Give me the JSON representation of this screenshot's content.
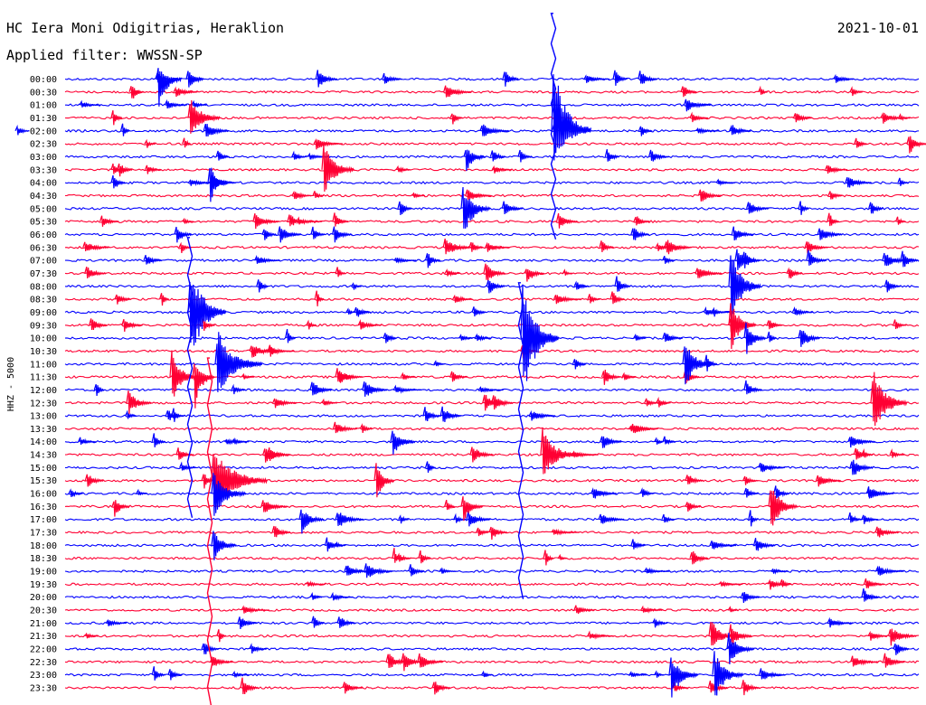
{
  "header": {
    "station": "HC Iera Moni Odigitrias, Heraklion",
    "filter": "Applied filter: WWSSN-SP",
    "date": "2021-10-01"
  },
  "chart_data": {
    "type": "line",
    "title": "HC Iera Moni Odigitrias, Heraklion",
    "subtitle": "Applied filter: WWSSN-SP",
    "date": "2021-10-01",
    "ylabel": "HHZ - 5000",
    "trace_colors": [
      "#0000ff",
      "#ff0033"
    ],
    "rows": [
      "00:00",
      "00:30",
      "01:00",
      "01:30",
      "02:00",
      "02:30",
      "03:00",
      "03:30",
      "04:00",
      "04:30",
      "05:00",
      "05:30",
      "06:00",
      "06:30",
      "07:00",
      "07:30",
      "08:00",
      "08:30",
      "09:00",
      "09:30",
      "10:00",
      "10:30",
      "11:00",
      "11:30",
      "12:00",
      "12:30",
      "13:00",
      "13:30",
      "14:00",
      "14:30",
      "15:00",
      "15:30",
      "16:00",
      "16:30",
      "17:00",
      "17:30",
      "18:00",
      "18:30",
      "19:00",
      "19:30",
      "20:00",
      "20:30",
      "21:00",
      "21:30",
      "22:00",
      "22:30",
      "23:00",
      "23:30"
    ]
  }
}
